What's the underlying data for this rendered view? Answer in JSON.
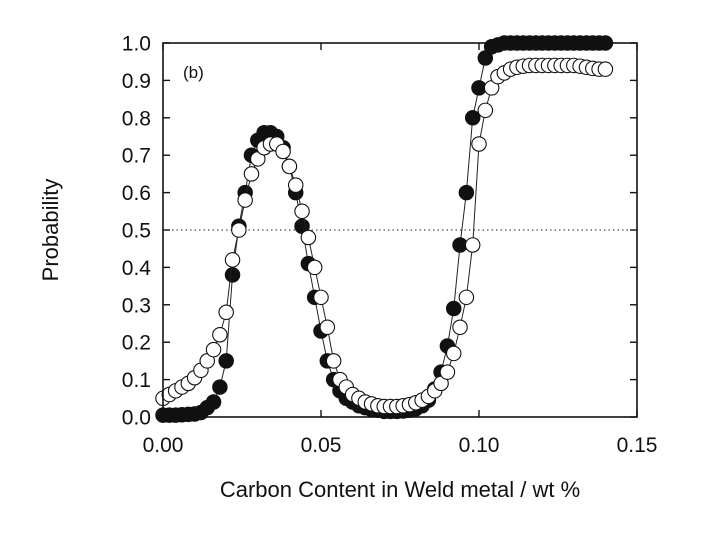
{
  "chart_data": {
    "type": "scatter",
    "panel_label": "(b)",
    "xlabel": "Carbon Content in Weld metal / wt %",
    "ylabel": "Probability",
    "xlim": [
      0.0,
      0.15
    ],
    "ylim": [
      0.0,
      1.0
    ],
    "x_ticks": [
      0.0,
      0.05,
      0.1,
      0.15
    ],
    "x_tick_labels": [
      "0.00",
      "0.05",
      "0.10",
      "0.15"
    ],
    "y_ticks": [
      0.0,
      0.1,
      0.2,
      0.3,
      0.4,
      0.5,
      0.6,
      0.7,
      0.8,
      0.9,
      1.0
    ],
    "y_tick_labels": [
      "0.0",
      "0.1",
      "0.2",
      "0.3",
      "0.4",
      "0.5",
      "0.6",
      "0.7",
      "0.8",
      "0.9",
      "1.0"
    ],
    "reference_line": {
      "y": 0.5,
      "style": "dotted"
    },
    "grid": false,
    "series": [
      {
        "marker": "filled-circle",
        "color": "#111111",
        "line": true,
        "x": [
          0.0,
          0.002,
          0.004,
          0.006,
          0.008,
          0.01,
          0.012,
          0.014,
          0.016,
          0.018,
          0.02,
          0.022,
          0.024,
          0.026,
          0.028,
          0.03,
          0.032,
          0.034,
          0.036,
          0.038,
          0.04,
          0.042,
          0.044,
          0.046,
          0.048,
          0.05,
          0.052,
          0.054,
          0.056,
          0.058,
          0.06,
          0.062,
          0.064,
          0.066,
          0.068,
          0.07,
          0.072,
          0.074,
          0.076,
          0.078,
          0.08,
          0.082,
          0.084,
          0.086,
          0.088,
          0.09,
          0.092,
          0.094,
          0.096,
          0.098,
          0.1,
          0.102,
          0.104,
          0.106,
          0.108,
          0.11,
          0.112,
          0.114,
          0.116,
          0.118,
          0.12,
          0.122,
          0.124,
          0.126,
          0.128,
          0.13,
          0.132,
          0.134,
          0.136,
          0.138,
          0.14
        ],
        "y": [
          0.005,
          0.005,
          0.005,
          0.006,
          0.007,
          0.008,
          0.012,
          0.025,
          0.04,
          0.08,
          0.15,
          0.38,
          0.51,
          0.6,
          0.7,
          0.74,
          0.76,
          0.76,
          0.75,
          0.72,
          0.67,
          0.6,
          0.51,
          0.41,
          0.32,
          0.23,
          0.15,
          0.1,
          0.07,
          0.05,
          0.04,
          0.03,
          0.025,
          0.02,
          0.018,
          0.015,
          0.015,
          0.015,
          0.016,
          0.018,
          0.022,
          0.03,
          0.045,
          0.075,
          0.12,
          0.19,
          0.29,
          0.46,
          0.6,
          0.8,
          0.88,
          0.96,
          0.99,
          0.995,
          1.0,
          1.0,
          1.0,
          1.0,
          1.0,
          1.0,
          1.0,
          1.0,
          1.0,
          1.0,
          1.0,
          1.0,
          1.0,
          1.0,
          1.0,
          1.0,
          1.0
        ]
      },
      {
        "marker": "open-circle",
        "color": "#111111",
        "line": true,
        "x": [
          0.0,
          0.002,
          0.004,
          0.006,
          0.008,
          0.01,
          0.012,
          0.014,
          0.016,
          0.018,
          0.02,
          0.022,
          0.024,
          0.026,
          0.028,
          0.03,
          0.032,
          0.034,
          0.036,
          0.038,
          0.04,
          0.042,
          0.044,
          0.046,
          0.048,
          0.05,
          0.052,
          0.054,
          0.056,
          0.058,
          0.06,
          0.062,
          0.064,
          0.066,
          0.068,
          0.07,
          0.072,
          0.074,
          0.076,
          0.078,
          0.08,
          0.082,
          0.084,
          0.086,
          0.088,
          0.09,
          0.092,
          0.094,
          0.096,
          0.098,
          0.1,
          0.102,
          0.104,
          0.106,
          0.108,
          0.11,
          0.112,
          0.114,
          0.116,
          0.118,
          0.12,
          0.122,
          0.124,
          0.126,
          0.128,
          0.13,
          0.132,
          0.134,
          0.136,
          0.138,
          0.14
        ],
        "y": [
          0.05,
          0.06,
          0.07,
          0.08,
          0.09,
          0.105,
          0.125,
          0.15,
          0.18,
          0.22,
          0.28,
          0.42,
          0.5,
          0.58,
          0.65,
          0.69,
          0.72,
          0.73,
          0.73,
          0.71,
          0.67,
          0.62,
          0.55,
          0.48,
          0.4,
          0.32,
          0.24,
          0.15,
          0.1,
          0.08,
          0.06,
          0.05,
          0.04,
          0.035,
          0.03,
          0.028,
          0.028,
          0.028,
          0.03,
          0.033,
          0.038,
          0.045,
          0.055,
          0.07,
          0.09,
          0.12,
          0.17,
          0.24,
          0.32,
          0.46,
          0.73,
          0.82,
          0.88,
          0.91,
          0.92,
          0.93,
          0.935,
          0.938,
          0.94,
          0.94,
          0.94,
          0.94,
          0.94,
          0.94,
          0.94,
          0.94,
          0.938,
          0.935,
          0.932,
          0.93,
          0.93
        ]
      }
    ]
  }
}
